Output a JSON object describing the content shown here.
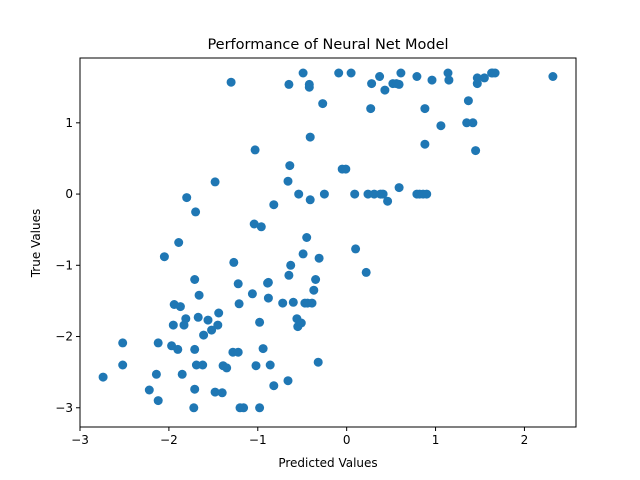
{
  "chart_data": {
    "type": "scatter",
    "title": "Performance of Neural Net Model",
    "xlabel": "Predicted Values",
    "ylabel": "True Values",
    "xlim": [
      -3,
      2.58
    ],
    "ylim": [
      -3.27,
      1.91
    ],
    "x_ticks": [
      -3,
      -2,
      -1,
      0,
      1,
      2
    ],
    "y_ticks": [
      -3,
      -2,
      -1,
      0,
      1
    ],
    "x_tick_labels": [
      "−3",
      "−2",
      "−1",
      "0",
      "1",
      "2"
    ],
    "y_tick_labels": [
      "−3",
      "−2",
      "−1",
      "0",
      "1"
    ],
    "grid": false,
    "legend": false,
    "point_color": "#1f77b4",
    "points": [
      [
        -2.74,
        -2.57
      ],
      [
        -2.52,
        -2.4
      ],
      [
        -2.52,
        -2.09
      ],
      [
        -2.22,
        -2.75
      ],
      [
        -2.14,
        -2.53
      ],
      [
        -2.12,
        -2.9
      ],
      [
        -2.12,
        -2.09
      ],
      [
        -2.05,
        -0.88
      ],
      [
        -1.97,
        -2.13
      ],
      [
        -1.95,
        -1.84
      ],
      [
        -1.94,
        -1.55
      ],
      [
        -1.9,
        -2.18
      ],
      [
        -1.89,
        -0.68
      ],
      [
        -1.87,
        -1.58
      ],
      [
        -1.85,
        -2.53
      ],
      [
        -1.83,
        -1.84
      ],
      [
        -1.81,
        -1.75
      ],
      [
        -1.8,
        -0.05
      ],
      [
        -1.72,
        -3.0
      ],
      [
        -1.71,
        -2.74
      ],
      [
        -1.71,
        -2.18
      ],
      [
        -1.71,
        -1.2
      ],
      [
        -1.7,
        -0.25
      ],
      [
        -1.69,
        -2.4
      ],
      [
        -1.67,
        -1.73
      ],
      [
        -1.66,
        -1.42
      ],
      [
        -1.62,
        -2.4
      ],
      [
        -1.61,
        -1.98
      ],
      [
        -1.56,
        -1.77
      ],
      [
        -1.52,
        -1.91
      ],
      [
        -1.48,
        -2.78
      ],
      [
        -1.48,
        0.17
      ],
      [
        -1.45,
        -1.84
      ],
      [
        -1.44,
        -1.67
      ],
      [
        -1.4,
        -2.79
      ],
      [
        -1.39,
        -2.41
      ],
      [
        -1.35,
        -2.44
      ],
      [
        -1.3,
        1.57
      ],
      [
        -1.28,
        -2.22
      ],
      [
        -1.27,
        -0.96
      ],
      [
        -1.22,
        -2.22
      ],
      [
        -1.22,
        -1.26
      ],
      [
        -1.21,
        -1.54
      ],
      [
        -1.2,
        -3.0
      ],
      [
        -1.16,
        -3.0
      ],
      [
        -1.06,
        -1.4
      ],
      [
        -1.04,
        -0.42
      ],
      [
        -1.03,
        0.62
      ],
      [
        -1.02,
        -2.41
      ],
      [
        -0.98,
        -1.8
      ],
      [
        -0.98,
        -3.0
      ],
      [
        -0.96,
        -0.46
      ],
      [
        -0.94,
        -2.17
      ],
      [
        -0.89,
        -1.25
      ],
      [
        -0.88,
        -1.24
      ],
      [
        -0.88,
        -1.46
      ],
      [
        -0.86,
        -2.4
      ],
      [
        -0.82,
        -2.69
      ],
      [
        -0.82,
        -0.15
      ],
      [
        -0.72,
        -1.53
      ],
      [
        -0.66,
        -2.62
      ],
      [
        -0.66,
        0.18
      ],
      [
        -0.65,
        1.54
      ],
      [
        -0.65,
        -1.14
      ],
      [
        -0.64,
        0.4
      ],
      [
        -0.63,
        -1.0
      ],
      [
        -0.6,
        -1.52
      ],
      [
        -0.56,
        -1.75
      ],
      [
        -0.55,
        -1.86
      ],
      [
        -0.54,
        0.0
      ],
      [
        -0.51,
        -1.81
      ],
      [
        -0.49,
        1.7
      ],
      [
        -0.49,
        -0.84
      ],
      [
        -0.47,
        -1.53
      ],
      [
        -0.45,
        -0.61
      ],
      [
        -0.44,
        -1.53
      ],
      [
        -0.42,
        1.5
      ],
      [
        -0.42,
        1.54
      ],
      [
        -0.41,
        -0.08
      ],
      [
        -0.41,
        0.8
      ],
      [
        -0.39,
        -1.53
      ],
      [
        -0.37,
        -1.35
      ],
      [
        -0.35,
        -1.2
      ],
      [
        -0.32,
        -2.36
      ],
      [
        -0.31,
        -0.9
      ],
      [
        -0.27,
        1.27
      ],
      [
        -0.25,
        0.0
      ],
      [
        -0.09,
        1.7
      ],
      [
        -0.05,
        0.35
      ],
      [
        -0.01,
        0.35
      ],
      [
        0.05,
        1.7
      ],
      [
        0.09,
        0.0
      ],
      [
        0.1,
        -0.77
      ],
      [
        0.22,
        -1.1
      ],
      [
        0.24,
        0.0
      ],
      [
        0.27,
        1.2
      ],
      [
        0.28,
        1.55
      ],
      [
        0.31,
        0.0
      ],
      [
        0.37,
        1.65
      ],
      [
        0.38,
        0.0
      ],
      [
        0.41,
        0.0
      ],
      [
        0.43,
        1.46
      ],
      [
        0.46,
        -0.1
      ],
      [
        0.52,
        1.55
      ],
      [
        0.56,
        1.55
      ],
      [
        0.59,
        1.54
      ],
      [
        0.59,
        0.09
      ],
      [
        0.61,
        1.7
      ],
      [
        0.79,
        1.65
      ],
      [
        0.79,
        0.0
      ],
      [
        0.82,
        0.0
      ],
      [
        0.86,
        0.0
      ],
      [
        0.88,
        1.2
      ],
      [
        0.88,
        0.7
      ],
      [
        0.9,
        0.0
      ],
      [
        0.96,
        1.6
      ],
      [
        1.06,
        0.96
      ],
      [
        1.14,
        1.7
      ],
      [
        1.15,
        1.6
      ],
      [
        1.35,
        1.0
      ],
      [
        1.37,
        1.31
      ],
      [
        1.42,
        1.0
      ],
      [
        1.45,
        0.61
      ],
      [
        1.47,
        1.63
      ],
      [
        1.47,
        1.55
      ],
      [
        1.55,
        1.63
      ],
      [
        1.63,
        1.7
      ],
      [
        1.64,
        1.7
      ],
      [
        1.67,
        1.7
      ],
      [
        2.32,
        1.65
      ]
    ]
  }
}
